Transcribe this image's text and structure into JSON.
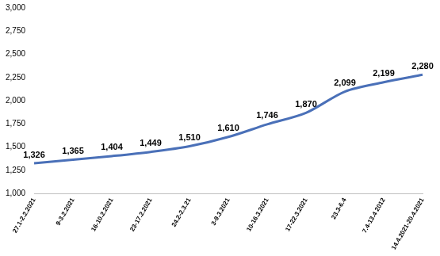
{
  "chart_data": {
    "type": "line",
    "categories": [
      "27.1-2.2.2021",
      "9-3.2.2021",
      "16-10.2.2021",
      "23-17.2.2021",
      "24.2-2.3.21",
      "3-9.3.2021",
      "10-16.3.2021",
      "17-22.3.2021",
      "23.3-6.4",
      "7.4-13.4 2012",
      "14.4.2021-20.4.2021"
    ],
    "values": [
      1326,
      1365,
      1404,
      1449,
      1510,
      1610,
      1746,
      1870,
      2099,
      2199,
      2280
    ],
    "value_labels": [
      "1,326",
      "1,365",
      "1,404",
      "1,449",
      "1,510",
      "1,610",
      "1,746",
      "1,870",
      "2,099",
      "2,199",
      "2,280"
    ],
    "data_labels": true,
    "color": "#4a70b8",
    "ylim": [
      1000,
      3000
    ],
    "yticks": [
      {
        "value": 1000,
        "label": "1,000"
      },
      {
        "value": 1250,
        "label": "1,250"
      },
      {
        "value": 1500,
        "label": "1,500"
      },
      {
        "value": 1750,
        "label": "1,750"
      },
      {
        "value": 2000,
        "label": "2,000"
      },
      {
        "value": 2250,
        "label": "2,250"
      },
      {
        "value": 2500,
        "label": "2,500"
      },
      {
        "value": 2750,
        "label": "2,750"
      },
      {
        "value": 3000,
        "label": "3,000"
      }
    ],
    "grid": false
  }
}
